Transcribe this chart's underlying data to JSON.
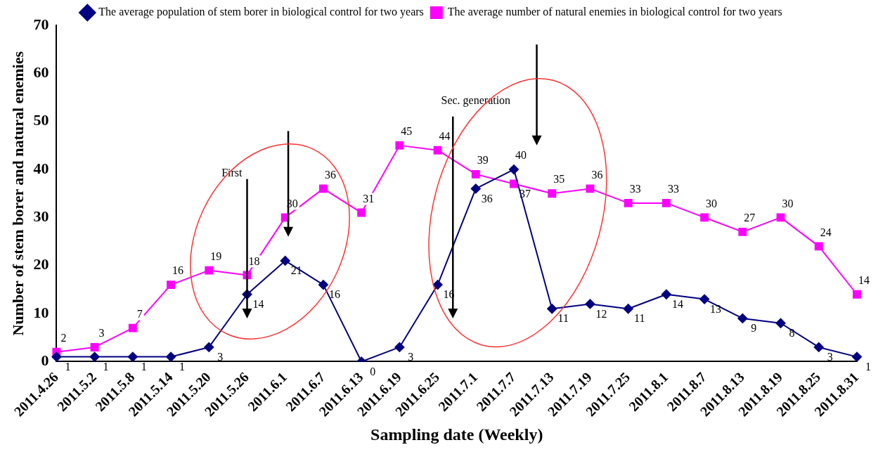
{
  "chart_data": {
    "type": "line",
    "xlabel": "Sampling date (Weekly)",
    "ylabel": "Number of stem borer and natural enemies",
    "categories": [
      "2011.4.26",
      "2011.5.2",
      "2011.5.8",
      "2011.5.14",
      "2011.5.20",
      "2011.5.26",
      "2011.6.1",
      "2011.6.7",
      "2011.6.13",
      "2011.6.19",
      "2011.6.25",
      "2011.7.1",
      "2011.7.7",
      "2011.7.13",
      "2011.7.19",
      "2011.7.25",
      "2011.8.1",
      "2011.8.7",
      "2011.8.13",
      "2011.8.19",
      "2011.8.25",
      "2011.8.31"
    ],
    "series": [
      {
        "name": "The average population of stem borer in biological control for two years",
        "color": "#000080",
        "marker": "diamond",
        "values": [
          1,
          1,
          1,
          1,
          3,
          14,
          21,
          16,
          0,
          3,
          16,
          36,
          40,
          11,
          12,
          11,
          14,
          13,
          9,
          8,
          3,
          1
        ]
      },
      {
        "name": "The average number of natural enemies in biological control for two years",
        "color": "#ff00ff",
        "marker": "square",
        "values": [
          2,
          3,
          7,
          16,
          19,
          18,
          30,
          36,
          31,
          45,
          44,
          39,
          37,
          35,
          36,
          33,
          33,
          30,
          27,
          30,
          24,
          14
        ]
      }
    ],
    "ylim": [
      0,
      70
    ],
    "yticks": [
      0,
      10,
      20,
      30,
      40,
      50,
      60,
      70
    ],
    "grid": false,
    "legend": "top",
    "data_labels": true,
    "line_style": "solid",
    "annotations": [
      "First",
      "Sec. generation"
    ]
  }
}
